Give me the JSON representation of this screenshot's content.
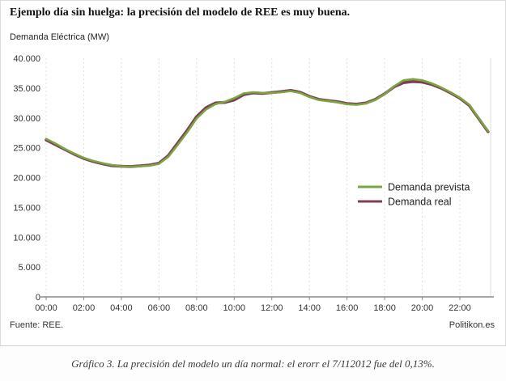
{
  "header": {
    "title": "Ejemplo día sin huelga: la precisión del modelo de REE es muy buena."
  },
  "axis_label_y": "Demanda Eléctrica (MW)",
  "footer": {
    "source": "Fuente: REE.",
    "site": "Politikon.es"
  },
  "caption": "Gráfico 3. La precisión del modelo un día normal: el erorr el 7/112012 fue del 0,13%.",
  "chart_data": {
    "type": "line",
    "title": "Ejemplo día sin huelga: la precisión del modelo de REE es muy buena.",
    "ylabel": "Demanda Eléctrica (MW)",
    "xlabel": "",
    "ylim": [
      0,
      40000
    ],
    "xlim_hours": [
      0,
      24
    ],
    "grid": "vertical-dashed",
    "legend_position": "middle-right",
    "y_tick_values": [
      0,
      5000,
      10000,
      15000,
      20000,
      25000,
      30000,
      35000,
      40000
    ],
    "y_tick_labels": [
      "0",
      "5.000",
      "10.000",
      "15.000",
      "20.000",
      "25.000",
      "30.000",
      "35.000",
      "40.000"
    ],
    "x_tick_hours": [
      0,
      2,
      4,
      6,
      8,
      10,
      12,
      14,
      16,
      18,
      20,
      22
    ],
    "x_tick_labels": [
      "00:00",
      "02:00",
      "04:00",
      "06:00",
      "08:00",
      "10:00",
      "12:00",
      "14:00",
      "16:00",
      "18:00",
      "20:00",
      "22:00"
    ],
    "x_hours": [
      0,
      0.5,
      1,
      1.5,
      2,
      2.5,
      3,
      3.5,
      4,
      4.5,
      5,
      5.5,
      6,
      6.5,
      7,
      7.5,
      8,
      8.5,
      9,
      9.5,
      10,
      10.5,
      11,
      11.5,
      12,
      12.5,
      13,
      13.5,
      14,
      14.5,
      15,
      15.5,
      16,
      16.5,
      17,
      17.5,
      18,
      18.5,
      19,
      19.5,
      20,
      20.5,
      21,
      21.5,
      22,
      22.5,
      23,
      23.5
    ],
    "series": [
      {
        "name": "Demanda prevista",
        "color": "#7aa53f",
        "draw_width": 2.6,
        "values": [
          26500,
          25700,
          24800,
          24000,
          23300,
          22800,
          22400,
          22100,
          21900,
          21800,
          21900,
          22000,
          22300,
          23500,
          25500,
          27600,
          29900,
          31400,
          32300,
          32700,
          33300,
          34100,
          34300,
          34200,
          34200,
          34300,
          34500,
          34200,
          33500,
          33000,
          32800,
          32600,
          32300,
          32200,
          32400,
          33000,
          34000,
          35300,
          36300,
          36500,
          36300,
          35800,
          35100,
          34300,
          33400,
          32200,
          30000,
          27800
        ]
      },
      {
        "name": "Demanda real",
        "color": "#7e3e55",
        "draw_width": 3.6,
        "values": [
          26300,
          25500,
          24700,
          23900,
          23200,
          22700,
          22300,
          22000,
          21900,
          21850,
          21950,
          22100,
          22400,
          23700,
          25800,
          27900,
          30200,
          31700,
          32500,
          32600,
          33000,
          33900,
          34200,
          34100,
          34250,
          34400,
          34600,
          34300,
          33600,
          33100,
          32900,
          32700,
          32400,
          32300,
          32500,
          33100,
          34050,
          35200,
          35900,
          36100,
          36000,
          35600,
          35000,
          34200,
          33300,
          32100,
          29900,
          27700
        ]
      }
    ]
  }
}
